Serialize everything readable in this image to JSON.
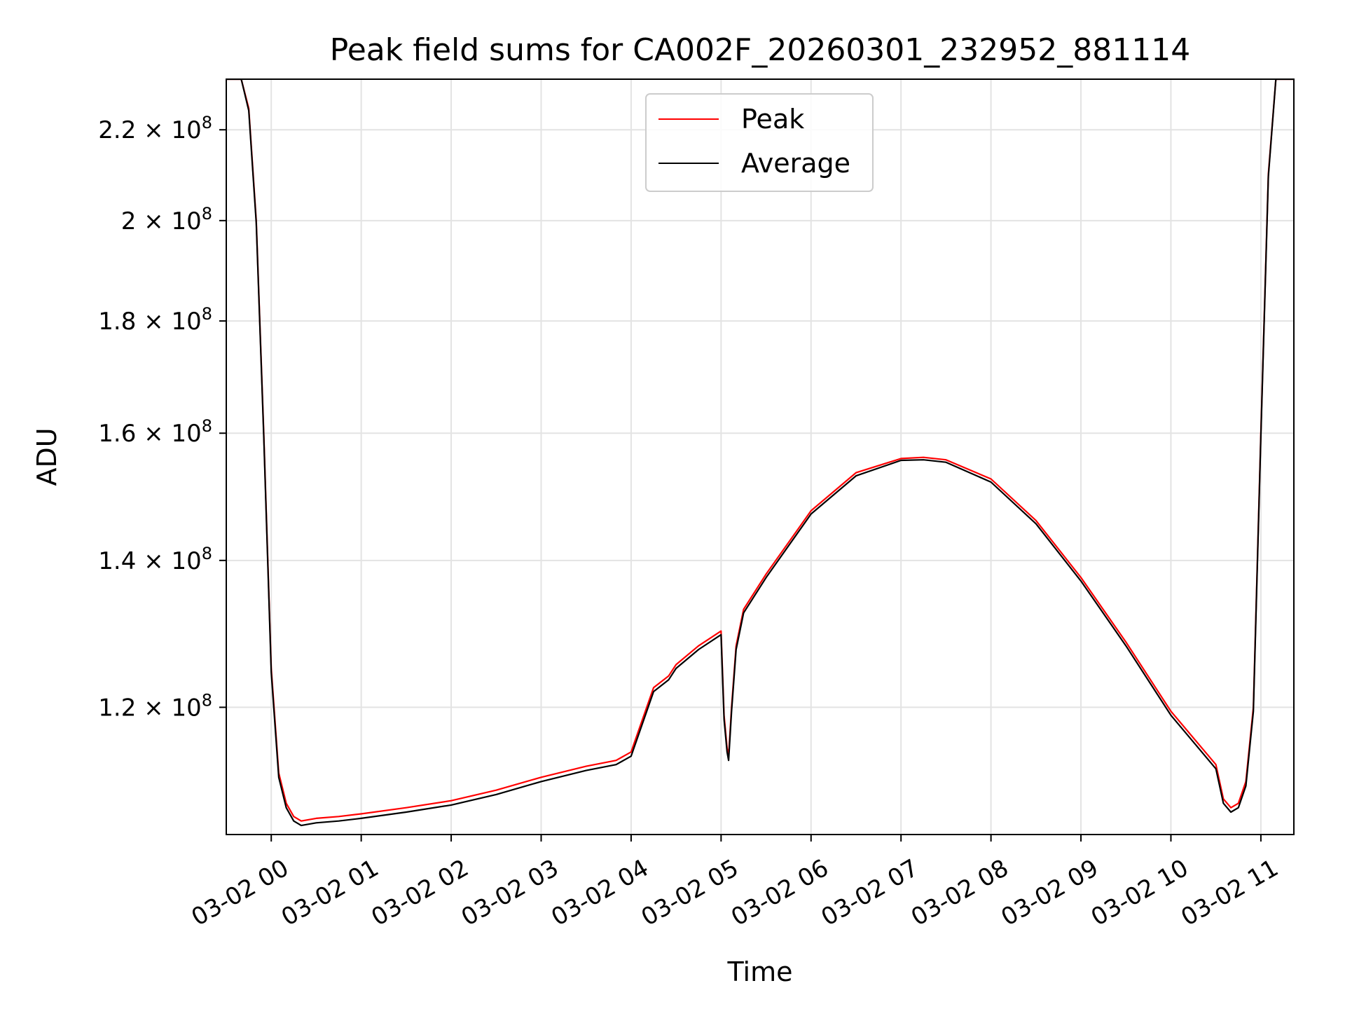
{
  "chart_data": {
    "type": "line",
    "title": "Peak field sums for CA002F_20260301_232952_881114",
    "xlabel": "Time",
    "ylabel": "ADU",
    "x_start": "2026-03-01 23:30",
    "x_end": "2026-03-02 11:22",
    "xlim": [
      "2026-03-01 23:30",
      "2026-03-02 11:22"
    ],
    "ylim": [
      105000000,
      232000000
    ],
    "y_scale": "log",
    "grid": true,
    "legend_position": "upper center",
    "x_tick_labels": [
      "03-02 00",
      "03-02 01",
      "03-02 02",
      "03-02 03",
      "03-02 04",
      "03-02 05",
      "03-02 06",
      "03-02 07",
      "03-02 08",
      "03-02 09",
      "03-02 10",
      "03-02 11"
    ],
    "y_ticks": [
      {
        "value": 120000000,
        "mantissa": "1.2",
        "exp": "8"
      },
      {
        "value": 140000000,
        "mantissa": "1.4",
        "exp": "8"
      },
      {
        "value": 160000000,
        "mantissa": "1.6",
        "exp": "8"
      },
      {
        "value": 180000000,
        "mantissa": "1.8",
        "exp": "8"
      },
      {
        "value": 200000000,
        "mantissa": "2",
        "exp": "8"
      },
      {
        "value": 220000000,
        "mantissa": "2.2",
        "exp": "8"
      }
    ],
    "series": [
      {
        "name": "Peak",
        "color": "#ff0000",
        "x": [
          "2026-03-01 23:30",
          "2026-03-01 23:40",
          "2026-03-01 23:45",
          "2026-03-01 23:50",
          "2026-03-01 23:55",
          "2026-03-02 00:00",
          "2026-03-02 00:05",
          "2026-03-02 00:10",
          "2026-03-02 00:15",
          "2026-03-02 00:20",
          "2026-03-02 00:30",
          "2026-03-02 00:45",
          "2026-03-02 01:00",
          "2026-03-02 01:30",
          "2026-03-02 02:00",
          "2026-03-02 02:30",
          "2026-03-02 03:00",
          "2026-03-02 03:30",
          "2026-03-02 03:50",
          "2026-03-02 04:00",
          "2026-03-02 04:15",
          "2026-03-02 04:25",
          "2026-03-02 04:30",
          "2026-03-02 04:45",
          "2026-03-02 05:00",
          "2026-03-02 05:02",
          "2026-03-02 05:04",
          "2026-03-02 05:05",
          "2026-03-02 05:07",
          "2026-03-02 05:10",
          "2026-03-02 05:15",
          "2026-03-02 05:30",
          "2026-03-02 06:00",
          "2026-03-02 06:30",
          "2026-03-02 07:00",
          "2026-03-02 07:15",
          "2026-03-02 07:30",
          "2026-03-02 08:00",
          "2026-03-02 08:30",
          "2026-03-02 09:00",
          "2026-03-02 09:30",
          "2026-03-02 10:00",
          "2026-03-02 10:30",
          "2026-03-02 10:35",
          "2026-03-02 10:40",
          "2026-03-02 10:45",
          "2026-03-02 10:50",
          "2026-03-02 10:55",
          "2026-03-02 11:00",
          "2026-03-02 11:05",
          "2026-03-02 11:10",
          "2026-03-02 11:22"
        ],
        "values": [
          232000000,
          232000000,
          225000000,
          200000000,
          160000000,
          125000000,
          112000000,
          108500000,
          107000000,
          106500000,
          106800000,
          107000000,
          107300000,
          108000000,
          108800000,
          110000000,
          111500000,
          112800000,
          113500000,
          114500000,
          122500000,
          124000000,
          125500000,
          128000000,
          130000000,
          119000000,
          115000000,
          114000000,
          120000000,
          128000000,
          133000000,
          138000000,
          147500000,
          153500000,
          155800000,
          156000000,
          155600000,
          152500000,
          146000000,
          137500000,
          128500000,
          119500000,
          113000000,
          109000000,
          108000000,
          108500000,
          111000000,
          120000000,
          160000000,
          210000000,
          232000000,
          232000000
        ]
      },
      {
        "name": "Average",
        "color": "#000000",
        "x": [
          "2026-03-01 23:30",
          "2026-03-01 23:40",
          "2026-03-01 23:45",
          "2026-03-01 23:50",
          "2026-03-01 23:55",
          "2026-03-02 00:00",
          "2026-03-02 00:05",
          "2026-03-02 00:10",
          "2026-03-02 00:15",
          "2026-03-02 00:20",
          "2026-03-02 00:30",
          "2026-03-02 00:45",
          "2026-03-02 01:00",
          "2026-03-02 01:30",
          "2026-03-02 02:00",
          "2026-03-02 02:30",
          "2026-03-02 03:00",
          "2026-03-02 03:30",
          "2026-03-02 03:50",
          "2026-03-02 04:00",
          "2026-03-02 04:15",
          "2026-03-02 04:25",
          "2026-03-02 04:30",
          "2026-03-02 04:45",
          "2026-03-02 05:00",
          "2026-03-02 05:02",
          "2026-03-02 05:04",
          "2026-03-02 05:05",
          "2026-03-02 05:07",
          "2026-03-02 05:10",
          "2026-03-02 05:15",
          "2026-03-02 05:30",
          "2026-03-02 06:00",
          "2026-03-02 06:30",
          "2026-03-02 07:00",
          "2026-03-02 07:15",
          "2026-03-02 07:30",
          "2026-03-02 08:00",
          "2026-03-02 08:30",
          "2026-03-02 09:00",
          "2026-03-02 09:30",
          "2026-03-02 10:00",
          "2026-03-02 10:30",
          "2026-03-02 10:35",
          "2026-03-02 10:40",
          "2026-03-02 10:45",
          "2026-03-02 10:50",
          "2026-03-02 10:55",
          "2026-03-02 11:00",
          "2026-03-02 11:05",
          "2026-03-02 11:10",
          "2026-03-02 11:22"
        ],
        "values": [
          232000000,
          232000000,
          224500000,
          199500000,
          159500000,
          124500000,
          111500000,
          108000000,
          106500000,
          106000000,
          106300000,
          106500000,
          106800000,
          107500000,
          108300000,
          109500000,
          111000000,
          112300000,
          113000000,
          114000000,
          122000000,
          123500000,
          125000000,
          127500000,
          129500000,
          118500000,
          114500000,
          113500000,
          119500000,
          127500000,
          132500000,
          137500000,
          147000000,
          153000000,
          155500000,
          155600000,
          155200000,
          152000000,
          145500000,
          137000000,
          128000000,
          119000000,
          112500000,
          108500000,
          107500000,
          108000000,
          110500000,
          119500000,
          159500000,
          209500000,
          232000000,
          232000000
        ]
      }
    ]
  }
}
